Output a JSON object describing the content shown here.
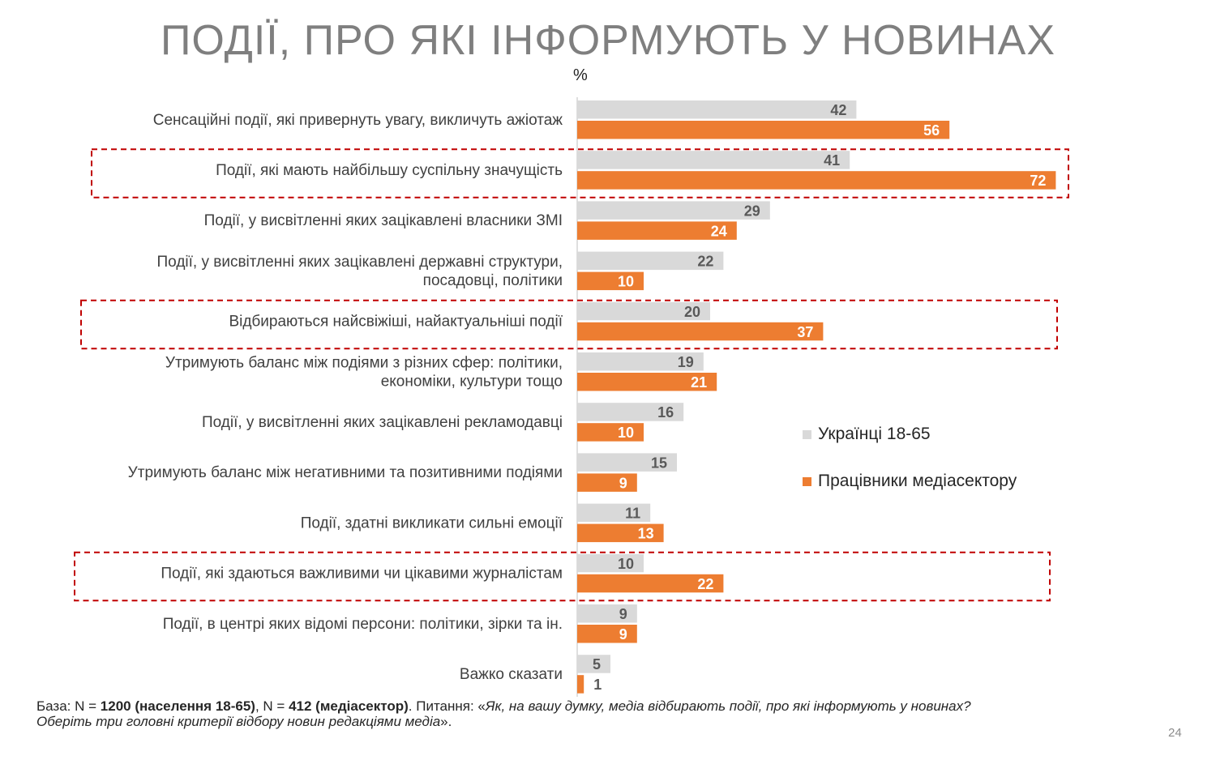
{
  "title": "ПОДІЇ, ПРО ЯКІ ІНФОРМУЮТЬ У НОВИНАХ",
  "unit": "%",
  "colors": {
    "series1": "#d9d9d9",
    "series2": "#ed7d31",
    "highlight": "#c00000",
    "label1": "#595959",
    "label2": "#ffffff"
  },
  "chart_data": {
    "type": "bar",
    "orientation": "horizontal",
    "categories": [
      [
        "Сенсаційні події, які привернуть увагу, викличуть ажіотаж"
      ],
      [
        "Події, які мають найбільшу суспільну значущість"
      ],
      [
        "Події, у висвітленні яких зацікавлені  власники ЗМІ"
      ],
      [
        "Події, у висвітленні яких зацікавлені державні структури,",
        "посадовці, політики"
      ],
      [
        "Відбираються найсвіжіші, найактуальніші події"
      ],
      [
        "Утримують баланс між подіями з різних сфер: політики,",
        "економіки, культури тощо"
      ],
      [
        "Події, у висвітленні яких зацікавлені рекламодавці"
      ],
      [
        "Утримують баланс між негативними та позитивними подіями"
      ],
      [
        "Події, здатні викликати сильні емоції"
      ],
      [
        "Події, які здаються важливими чи цікавими журналістам"
      ],
      [
        "Події, в центрі яких відомі персони: політики, зірки та ін."
      ],
      [
        "Важко сказати"
      ]
    ],
    "series": [
      {
        "name": "Українці 18-65",
        "values": [
          42,
          41,
          29,
          22,
          20,
          19,
          16,
          15,
          11,
          10,
          9,
          5
        ]
      },
      {
        "name": "Працівники медіасектору",
        "values": [
          56,
          72,
          24,
          10,
          37,
          21,
          10,
          9,
          13,
          22,
          9,
          1
        ]
      }
    ],
    "highlighted_categories": [
      1,
      4,
      9
    ],
    "legend": "right"
  },
  "footer": {
    "base_prefix": "База: N = ",
    "base_n1": "1200 (населення 18-65)",
    "base_mid": ", N = ",
    "base_n2": "412 (медіасектор)",
    "question_prefix": ". Питання: «",
    "question_line1": "Як, на вашу думку, медіа відбирають події, про які інформують у новинах?",
    "question_line2": "Оберіть три головні критерії відбору новин редакціями медіа",
    "question_suffix": "»."
  },
  "page_number": "24"
}
